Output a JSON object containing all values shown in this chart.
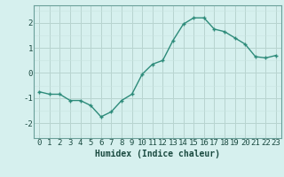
{
  "x": [
    0,
    1,
    2,
    3,
    4,
    5,
    6,
    7,
    8,
    9,
    10,
    11,
    12,
    13,
    14,
    15,
    16,
    17,
    18,
    19,
    20,
    21,
    22,
    23
  ],
  "y": [
    -0.75,
    -0.85,
    -0.85,
    -1.1,
    -1.1,
    -1.3,
    -1.75,
    -1.55,
    -1.1,
    -0.85,
    -0.05,
    0.35,
    0.5,
    1.3,
    1.95,
    2.2,
    2.2,
    1.75,
    1.65,
    1.4,
    1.15,
    0.65,
    0.6,
    0.7
  ],
  "line_color": "#2d8b7a",
  "marker": "+",
  "marker_size": 3.5,
  "bg_color": "#d6f0ee",
  "grid_major_color": "#b8d4d0",
  "grid_minor_color": "#c8e4e0",
  "xlabel": "Humidex (Indice chaleur)",
  "xlabel_fontsize": 7,
  "tick_fontsize": 6.5,
  "ylim": [
    -2.6,
    2.7
  ],
  "xlim": [
    -0.5,
    23.5
  ],
  "yticks": [
    -2,
    -1,
    0,
    1,
    2
  ],
  "xticks": [
    0,
    1,
    2,
    3,
    4,
    5,
    6,
    7,
    8,
    9,
    10,
    11,
    12,
    13,
    14,
    15,
    16,
    17,
    18,
    19,
    20,
    21,
    22,
    23
  ],
  "linewidth": 1.0,
  "marker_edge_width": 1.0
}
